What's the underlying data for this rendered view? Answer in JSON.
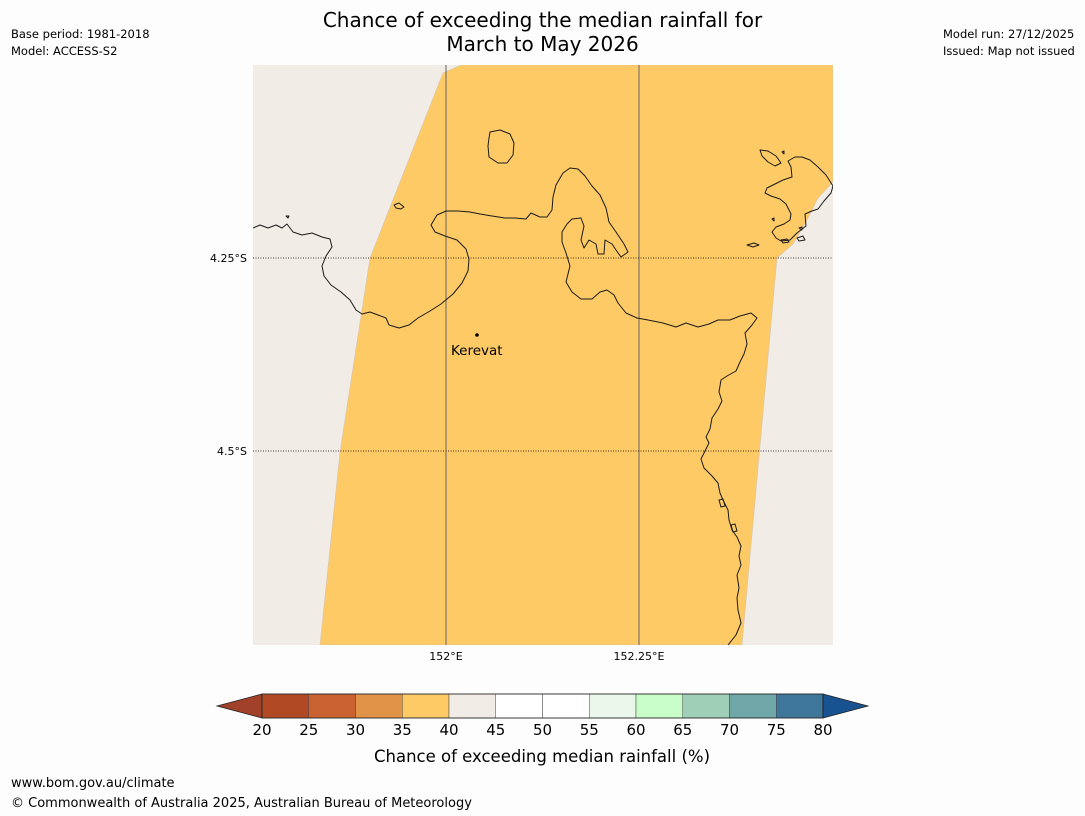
{
  "header": {
    "title_line1": "Chance of exceeding the median rainfall for",
    "title_line2": "March to May 2026",
    "base_period": "Base period: 1981-2018",
    "model": "Model: ACCESS-S2",
    "model_run": "Model run: 27/12/2025",
    "issued": "Issued: Map not issued"
  },
  "map": {
    "lat_labels": [
      "4.25°S",
      "4.5°S"
    ],
    "lon_labels": [
      "152°E",
      "152.25°E"
    ],
    "place": "Kerevat",
    "colors": {
      "background": "#f1ece6",
      "forecast_fill": "#fdca66",
      "coastline": "#1a1a1a"
    }
  },
  "legend": {
    "tick_labels": [
      "20",
      "25",
      "30",
      "35",
      "40",
      "45",
      "50",
      "55",
      "60",
      "65",
      "70",
      "75",
      "80"
    ],
    "colors": [
      "#a1412a",
      "#b14a24",
      "#c96230",
      "#e19347",
      "#fdca66",
      "#f1ece6",
      "#ffffff",
      "#ffffff",
      "#eaf7ea",
      "#c8fcc8",
      "#9fcfb7",
      "#6fa6a7",
      "#3e7799",
      "#185291"
    ],
    "label": "Chance of exceeding median rainfall (%)"
  },
  "footer": {
    "url": "www.bom.gov.au/climate",
    "copyright": "© Commonwealth of Australia 2025, Australian Bureau of Meteorology"
  }
}
